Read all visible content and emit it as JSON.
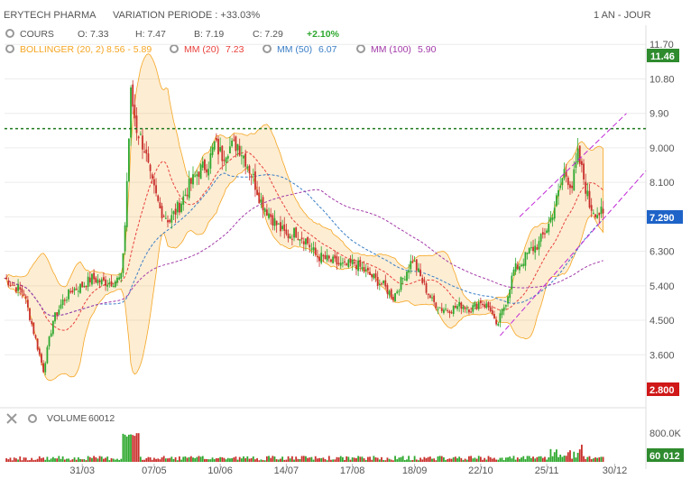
{
  "header": {
    "name": "ERYTECH PHARMA",
    "variation": "VARIATION PERIODE : +33.03%",
    "period": "1 AN - JOUR"
  },
  "legend": {
    "cours_label": "COURS",
    "open": "O: 7.33",
    "high": "H: 7.47",
    "low": "B: 7.19",
    "close": "C: 7.29",
    "change": "+2.10%",
    "bollinger_label": "BOLLINGER (20, 2)",
    "bollinger_value": "8.56 - 5.89",
    "mm20_label": "MM (20)",
    "mm20_value": "7.23",
    "mm50_label": "MM (50)",
    "mm50_value": "6.07",
    "mm100_label": "MM (100)",
    "mm100_value": "5.90"
  },
  "volume_panel": {
    "label": "VOLUME",
    "value": "60012",
    "tick": "800.0K",
    "badge": "60 012"
  },
  "badges": {
    "high_badge": "11.46",
    "last_badge": "7.290",
    "low_badge": "2.800"
  },
  "colors": {
    "up": "#2ea82e",
    "down": "#c9302c",
    "bollinger": "#f5a623",
    "mm20": "#e8413c",
    "mm50": "#3a7ec6",
    "mm100": "#a23aa8",
    "channel": "#c02ad6",
    "resistance": "#1f7a1f"
  },
  "chart_data": {
    "type": "candlestick",
    "title": "ERYTECH PHARMA",
    "period": "1 AN - JOUR",
    "y_ticks": [
      3.6,
      4.5,
      5.4,
      6.3,
      7.2,
      8.1,
      9.0,
      9.9,
      10.8,
      11.7
    ],
    "y_tick_labels": [
      "3.600",
      "4.500",
      "5.400",
      "6.300",
      "",
      "8.100",
      "9.000",
      "9.90",
      "10.80",
      "11.70"
    ],
    "ylim": [
      2.5,
      12.2
    ],
    "x_tick_labels": [
      "31/03",
      "07/05",
      "10/06",
      "14/07",
      "17/08",
      "18/09",
      "22/10",
      "25/11",
      "30/12"
    ],
    "x_tick_days": [
      40,
      77,
      111,
      145,
      179,
      211,
      245,
      279,
      314
    ],
    "x_range_days": [
      0,
      330
    ],
    "resistance_level": 9.5,
    "close_keypoints": [
      [
        0,
        5.6
      ],
      [
        10,
        5.2
      ],
      [
        15,
        4.2
      ],
      [
        20,
        3.2
      ],
      [
        25,
        4.5
      ],
      [
        30,
        5.0
      ],
      [
        35,
        5.3
      ],
      [
        40,
        5.4
      ],
      [
        45,
        5.6
      ],
      [
        50,
        5.5
      ],
      [
        55,
        5.5
      ],
      [
        60,
        5.6
      ],
      [
        62,
        7.0
      ],
      [
        65,
        10.4
      ],
      [
        68,
        9.5
      ],
      [
        72,
        9.0
      ],
      [
        75,
        8.2
      ],
      [
        80,
        7.4
      ],
      [
        85,
        7.1
      ],
      [
        90,
        7.5
      ],
      [
        95,
        8.0
      ],
      [
        100,
        8.4
      ],
      [
        105,
        8.6
      ],
      [
        108,
        9.1
      ],
      [
        112,
        8.8
      ],
      [
        115,
        9.0
      ],
      [
        120,
        9.1
      ],
      [
        124,
        8.7
      ],
      [
        128,
        8.2
      ],
      [
        132,
        7.6
      ],
      [
        136,
        7.3
      ],
      [
        140,
        7.0
      ],
      [
        145,
        6.7
      ],
      [
        150,
        6.8
      ],
      [
        155,
        6.6
      ],
      [
        160,
        6.2
      ],
      [
        165,
        6.1
      ],
      [
        170,
        6.0
      ],
      [
        175,
        5.9
      ],
      [
        180,
        6.0
      ],
      [
        185,
        5.8
      ],
      [
        190,
        5.6
      ],
      [
        195,
        5.4
      ],
      [
        200,
        5.1
      ],
      [
        205,
        5.6
      ],
      [
        210,
        6.1
      ],
      [
        215,
        5.5
      ],
      [
        220,
        5.0
      ],
      [
        225,
        4.8
      ],
      [
        230,
        4.8
      ],
      [
        235,
        4.9
      ],
      [
        240,
        4.8
      ],
      [
        245,
        5.0
      ],
      [
        250,
        4.8
      ],
      [
        253,
        4.3
      ],
      [
        258,
        5.0
      ],
      [
        262,
        5.8
      ],
      [
        266,
        6.0
      ],
      [
        270,
        6.3
      ],
      [
        275,
        6.5
      ],
      [
        280,
        7.0
      ],
      [
        285,
        7.8
      ],
      [
        288,
        8.4
      ],
      [
        292,
        8.0
      ],
      [
        295,
        8.8
      ],
      [
        298,
        8.2
      ],
      [
        301,
        7.5
      ],
      [
        305,
        7.3
      ],
      [
        308,
        7.29
      ]
    ],
    "series": [
      {
        "name": "BOLLINGER (20, 2)",
        "last": "8.56 - 5.89"
      },
      {
        "name": "MM (20)",
        "last": 7.23
      },
      {
        "name": "MM (50)",
        "last": 6.07
      },
      {
        "name": "MM (100)",
        "last": 5.9
      }
    ],
    "channel_upper": [
      [
        265,
        7.2
      ],
      [
        320,
        9.9
      ]
    ],
    "channel_lower": [
      [
        255,
        4.1
      ],
      [
        330,
        8.4
      ]
    ],
    "volume_tick": 800000,
    "volume_last": 60012,
    "last": {
      "open": 7.33,
      "high": 7.47,
      "low": 7.19,
      "close": 7.29
    }
  }
}
